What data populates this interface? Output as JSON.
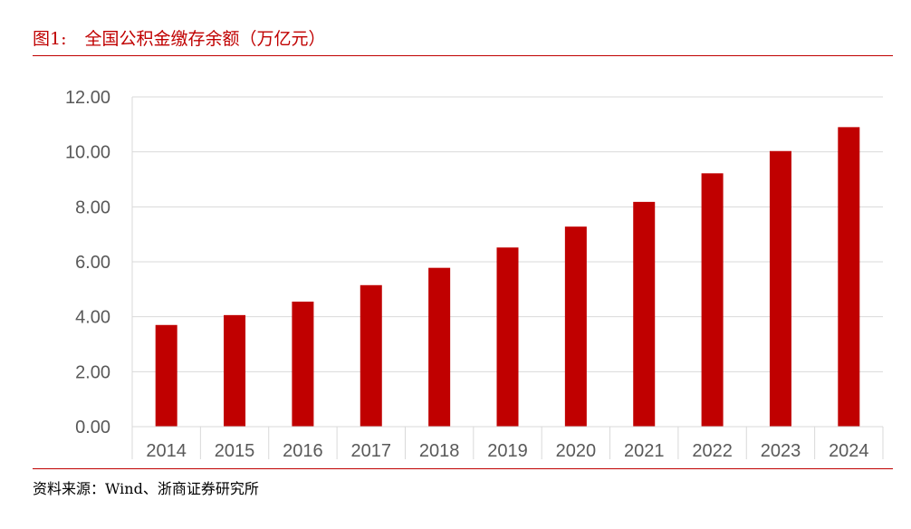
{
  "figure": {
    "number": "图1:",
    "title": "全国公积金缴存余额（万亿元）",
    "source": "资料来源：Wind、浙商证券研究所"
  },
  "colors": {
    "accent": "#c00000",
    "bar": "#c00000",
    "grid": "#d9d9d9",
    "tick_text": "#595959"
  },
  "chart_data": {
    "type": "bar",
    "title": "全国公积金缴存余额（万亿元）",
    "xlabel": "",
    "ylabel": "",
    "categories": [
      "2014",
      "2015",
      "2016",
      "2017",
      "2018",
      "2019",
      "2020",
      "2021",
      "2022",
      "2023",
      "2024"
    ],
    "values": [
      3.7,
      4.06,
      4.55,
      5.15,
      5.78,
      6.52,
      7.28,
      8.18,
      9.22,
      10.03,
      10.9
    ],
    "ylim": [
      0,
      12
    ],
    "yticks": [
      "0.00",
      "2.00",
      "4.00",
      "6.00",
      "8.00",
      "10.00",
      "12.00"
    ],
    "grid": true,
    "legend": "none"
  }
}
